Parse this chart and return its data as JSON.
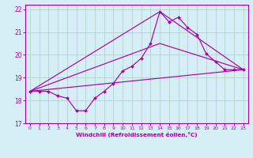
{
  "xlabel": "Windchill (Refroidissement éolien,°C)",
  "xlim": [
    -0.5,
    23.5
  ],
  "ylim": [
    17,
    22.2
  ],
  "yticks": [
    17,
    18,
    19,
    20,
    21,
    22
  ],
  "xticks": [
    0,
    1,
    2,
    3,
    4,
    5,
    6,
    7,
    8,
    9,
    10,
    11,
    12,
    13,
    14,
    15,
    16,
    17,
    18,
    19,
    20,
    21,
    22,
    23
  ],
  "bg_color": "#d6eef5",
  "line_color": "#aa00aa",
  "grid_color": "#b0d4cc",
  "curve_main": {
    "x": [
      0,
      1,
      2,
      3,
      4,
      5,
      6,
      7,
      8,
      9,
      10,
      11,
      12,
      13,
      14,
      15,
      16,
      17,
      18,
      19,
      20,
      21,
      22,
      23
    ],
    "y": [
      18.4,
      18.4,
      18.4,
      18.2,
      18.1,
      17.55,
      17.55,
      18.1,
      18.4,
      18.75,
      19.3,
      19.5,
      19.85,
      20.5,
      21.9,
      21.45,
      21.65,
      21.2,
      20.9,
      20.05,
      19.7,
      19.35,
      19.35,
      19.35
    ]
  },
  "curve_straight": {
    "x": [
      0,
      23
    ],
    "y": [
      18.4,
      19.35
    ]
  },
  "curve_upper": {
    "x": [
      0,
      14,
      23
    ],
    "y": [
      18.4,
      21.9,
      19.35
    ]
  },
  "curve_lower": {
    "x": [
      0,
      14,
      23
    ],
    "y": [
      18.4,
      20.5,
      19.35
    ]
  }
}
